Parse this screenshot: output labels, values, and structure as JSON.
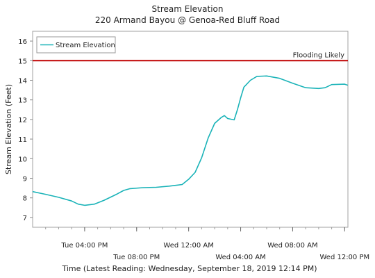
{
  "chart_data": {
    "type": "line",
    "title": "Stream Elevation",
    "subtitle": "220 Armand Bayou @ Genoa-Red Bluff Road",
    "xlabel": "Time (Latest Reading: Wednesday, September 18, 2019 12:14 PM)",
    "ylabel": "Stream Elevation (Feet)",
    "ylim": [
      6.5,
      16.5
    ],
    "yticks": [
      7,
      8,
      9,
      10,
      11,
      12,
      13,
      14,
      15,
      16
    ],
    "xlim": [
      "2019-09-17 12:00",
      "2019-09-18 12:15"
    ],
    "xticks": [
      {
        "time": "2019-09-17 16:00",
        "label": "Tue 04:00 PM",
        "row": 1
      },
      {
        "time": "2019-09-17 20:00",
        "label": "Tue 08:00 PM",
        "row": 2
      },
      {
        "time": "2019-09-18 00:00",
        "label": "Wed 12:00 AM",
        "row": 1
      },
      {
        "time": "2019-09-18 04:00",
        "label": "Wed 04:00 AM",
        "row": 2
      },
      {
        "time": "2019-09-18 08:00",
        "label": "Wed 08:00 AM",
        "row": 1
      },
      {
        "time": "2019-09-18 12:00",
        "label": "Wed 12:00 PM",
        "row": 2
      }
    ],
    "minor_tick_hours": 1,
    "grid": false,
    "legend": {
      "position": "top-left",
      "entries": [
        "Stream Elevation"
      ]
    },
    "threshold": {
      "label": "Flooding Likely",
      "value": 15,
      "color": "#c00000"
    },
    "series": [
      {
        "name": "Stream Elevation",
        "color": "#1ab3b8",
        "points": [
          [
            "2019-09-17 12:00",
            8.32
          ],
          [
            "2019-09-17 13:00",
            8.18
          ],
          [
            "2019-09-17 14:00",
            8.03
          ],
          [
            "2019-09-17 15:00",
            7.84
          ],
          [
            "2019-09-17 15:30",
            7.68
          ],
          [
            "2019-09-17 16:00",
            7.62
          ],
          [
            "2019-09-17 16:45",
            7.68
          ],
          [
            "2019-09-17 17:30",
            7.88
          ],
          [
            "2019-09-17 18:30",
            8.2
          ],
          [
            "2019-09-17 19:00",
            8.38
          ],
          [
            "2019-09-17 19:30",
            8.47
          ],
          [
            "2019-09-17 20:30",
            8.52
          ],
          [
            "2019-09-17 21:30",
            8.54
          ],
          [
            "2019-09-17 22:30",
            8.6
          ],
          [
            "2019-09-17 23:00",
            8.64
          ],
          [
            "2019-09-17 23:30",
            8.68
          ],
          [
            "2019-09-18 00:00",
            8.95
          ],
          [
            "2019-09-18 00:30",
            9.3
          ],
          [
            "2019-09-18 01:00",
            10.05
          ],
          [
            "2019-09-18 01:30",
            11.05
          ],
          [
            "2019-09-18 02:00",
            11.8
          ],
          [
            "2019-09-18 02:30",
            12.1
          ],
          [
            "2019-09-18 02:45",
            12.2
          ],
          [
            "2019-09-18 03:00",
            12.05
          ],
          [
            "2019-09-18 03:30",
            11.98
          ],
          [
            "2019-09-18 03:45",
            12.5
          ],
          [
            "2019-09-18 04:00",
            13.1
          ],
          [
            "2019-09-18 04:15",
            13.65
          ],
          [
            "2019-09-18 04:45",
            14.0
          ],
          [
            "2019-09-18 05:15",
            14.2
          ],
          [
            "2019-09-18 06:00",
            14.22
          ],
          [
            "2019-09-18 07:00",
            14.1
          ],
          [
            "2019-09-18 08:00",
            13.85
          ],
          [
            "2019-09-18 09:00",
            13.62
          ],
          [
            "2019-09-18 10:00",
            13.58
          ],
          [
            "2019-09-18 10:30",
            13.62
          ],
          [
            "2019-09-18 11:00",
            13.78
          ],
          [
            "2019-09-18 12:00",
            13.8
          ],
          [
            "2019-09-18 12:14",
            13.75
          ]
        ]
      }
    ]
  }
}
